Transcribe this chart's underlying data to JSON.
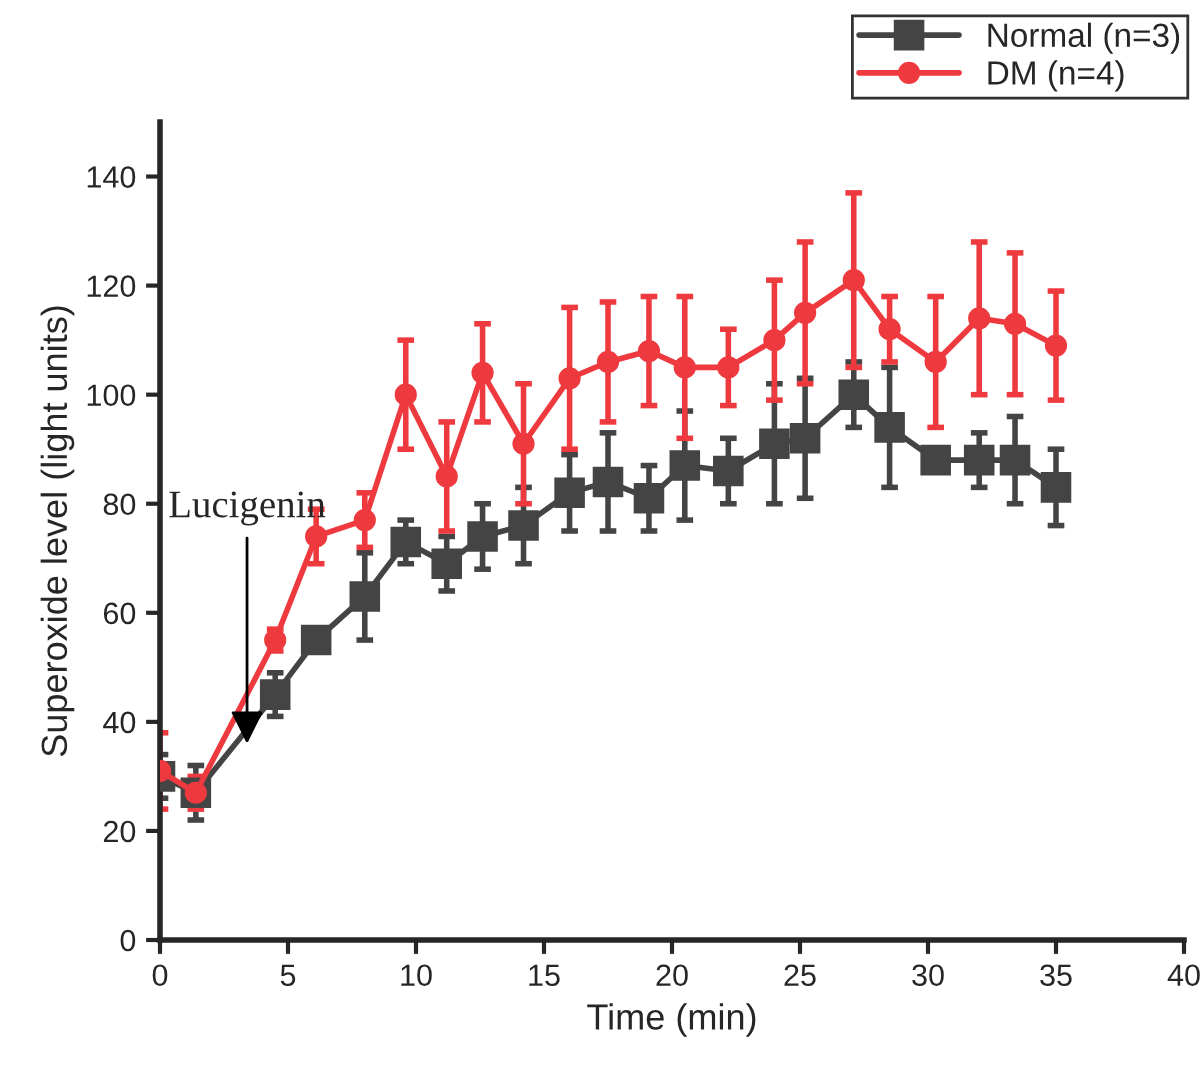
{
  "chart_data": {
    "type": "line",
    "xlabel": "Time (min)",
    "ylabel": "Superoxide level (light units)",
    "xlim": [
      0,
      40
    ],
    "xticks": [
      0,
      5,
      10,
      15,
      20,
      25,
      30,
      35,
      40
    ],
    "ylim": [
      0,
      150
    ],
    "yticks": [
      0,
      20,
      40,
      60,
      80,
      100,
      120,
      140
    ],
    "x": [
      0,
      1.4,
      4.5,
      6.1,
      8.0,
      9.6,
      11.2,
      12.6,
      14.2,
      16.0,
      17.5,
      19.1,
      20.5,
      22.2,
      24.0,
      25.2,
      27.1,
      28.5,
      30.3,
      32.0,
      33.4,
      35.0
    ],
    "series": [
      {
        "name": "Normal (n=3)",
        "color": "#444444",
        "marker": "square",
        "values": [
          30,
          27,
          45,
          55,
          63,
          73,
          69,
          74,
          76,
          82,
          84,
          81,
          87,
          86,
          91,
          92,
          100,
          94,
          88,
          88,
          88,
          83
        ],
        "errors": [
          4,
          5,
          4,
          2,
          8,
          4,
          5,
          6,
          7,
          7,
          9,
          6,
          10,
          6,
          11,
          11,
          6,
          11,
          1,
          5,
          8,
          7
        ]
      },
      {
        "name": "DM (n=4)",
        "color": "#ee3a3f",
        "marker": "circle",
        "values": [
          31,
          27,
          55,
          74,
          77,
          100,
          85,
          104,
          91,
          103,
          106,
          108,
          105,
          105,
          110,
          115,
          121,
          112,
          106,
          114,
          113,
          109
        ],
        "errors": [
          7,
          3,
          2,
          5,
          5,
          10,
          10,
          9,
          11,
          13,
          11,
          10,
          13,
          7,
          11,
          13,
          16,
          6,
          12,
          14,
          13,
          10
        ]
      }
    ],
    "annotations": [
      {
        "text": "Lucigenin",
        "x": 3.4,
        "y": 36
      }
    ],
    "legend": "top right",
    "grid": false,
    "line_style": "solid"
  }
}
